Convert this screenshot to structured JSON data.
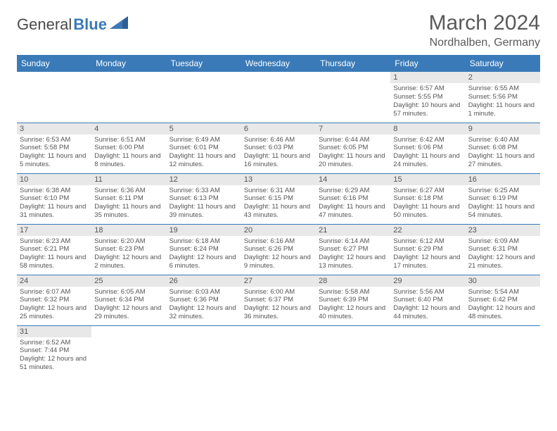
{
  "brand": {
    "part1": "General",
    "part2": "Blue"
  },
  "title": "March 2024",
  "location": "Nordhalben, Germany",
  "colors": {
    "header_bg": "#3a7ab8",
    "header_text": "#ffffff",
    "daynum_bg": "#e8e8e8",
    "text": "#555555",
    "border": "#3a7ab8"
  },
  "day_headers": [
    "Sunday",
    "Monday",
    "Tuesday",
    "Wednesday",
    "Thursday",
    "Friday",
    "Saturday"
  ],
  "weeks": [
    [
      null,
      null,
      null,
      null,
      null,
      {
        "n": "1",
        "sunrise": "6:57 AM",
        "sunset": "5:55 PM",
        "daylight": "10 hours and 57 minutes."
      },
      {
        "n": "2",
        "sunrise": "6:55 AM",
        "sunset": "5:56 PM",
        "daylight": "11 hours and 1 minute."
      }
    ],
    [
      {
        "n": "3",
        "sunrise": "6:53 AM",
        "sunset": "5:58 PM",
        "daylight": "11 hours and 5 minutes."
      },
      {
        "n": "4",
        "sunrise": "6:51 AM",
        "sunset": "6:00 PM",
        "daylight": "11 hours and 8 minutes."
      },
      {
        "n": "5",
        "sunrise": "6:49 AM",
        "sunset": "6:01 PM",
        "daylight": "11 hours and 12 minutes."
      },
      {
        "n": "6",
        "sunrise": "6:46 AM",
        "sunset": "6:03 PM",
        "daylight": "11 hours and 16 minutes."
      },
      {
        "n": "7",
        "sunrise": "6:44 AM",
        "sunset": "6:05 PM",
        "daylight": "11 hours and 20 minutes."
      },
      {
        "n": "8",
        "sunrise": "6:42 AM",
        "sunset": "6:06 PM",
        "daylight": "11 hours and 24 minutes."
      },
      {
        "n": "9",
        "sunrise": "6:40 AM",
        "sunset": "6:08 PM",
        "daylight": "11 hours and 27 minutes."
      }
    ],
    [
      {
        "n": "10",
        "sunrise": "6:38 AM",
        "sunset": "6:10 PM",
        "daylight": "11 hours and 31 minutes."
      },
      {
        "n": "11",
        "sunrise": "6:36 AM",
        "sunset": "6:11 PM",
        "daylight": "11 hours and 35 minutes."
      },
      {
        "n": "12",
        "sunrise": "6:33 AM",
        "sunset": "6:13 PM",
        "daylight": "11 hours and 39 minutes."
      },
      {
        "n": "13",
        "sunrise": "6:31 AM",
        "sunset": "6:15 PM",
        "daylight": "11 hours and 43 minutes."
      },
      {
        "n": "14",
        "sunrise": "6:29 AM",
        "sunset": "6:16 PM",
        "daylight": "11 hours and 47 minutes."
      },
      {
        "n": "15",
        "sunrise": "6:27 AM",
        "sunset": "6:18 PM",
        "daylight": "11 hours and 50 minutes."
      },
      {
        "n": "16",
        "sunrise": "6:25 AM",
        "sunset": "6:19 PM",
        "daylight": "11 hours and 54 minutes."
      }
    ],
    [
      {
        "n": "17",
        "sunrise": "6:23 AM",
        "sunset": "6:21 PM",
        "daylight": "11 hours and 58 minutes."
      },
      {
        "n": "18",
        "sunrise": "6:20 AM",
        "sunset": "6:23 PM",
        "daylight": "12 hours and 2 minutes."
      },
      {
        "n": "19",
        "sunrise": "6:18 AM",
        "sunset": "6:24 PM",
        "daylight": "12 hours and 6 minutes."
      },
      {
        "n": "20",
        "sunrise": "6:16 AM",
        "sunset": "6:26 PM",
        "daylight": "12 hours and 9 minutes."
      },
      {
        "n": "21",
        "sunrise": "6:14 AM",
        "sunset": "6:27 PM",
        "daylight": "12 hours and 13 minutes."
      },
      {
        "n": "22",
        "sunrise": "6:12 AM",
        "sunset": "6:29 PM",
        "daylight": "12 hours and 17 minutes."
      },
      {
        "n": "23",
        "sunrise": "6:09 AM",
        "sunset": "6:31 PM",
        "daylight": "12 hours and 21 minutes."
      }
    ],
    [
      {
        "n": "24",
        "sunrise": "6:07 AM",
        "sunset": "6:32 PM",
        "daylight": "12 hours and 25 minutes."
      },
      {
        "n": "25",
        "sunrise": "6:05 AM",
        "sunset": "6:34 PM",
        "daylight": "12 hours and 29 minutes."
      },
      {
        "n": "26",
        "sunrise": "6:03 AM",
        "sunset": "6:36 PM",
        "daylight": "12 hours and 32 minutes."
      },
      {
        "n": "27",
        "sunrise": "6:00 AM",
        "sunset": "6:37 PM",
        "daylight": "12 hours and 36 minutes."
      },
      {
        "n": "28",
        "sunrise": "5:58 AM",
        "sunset": "6:39 PM",
        "daylight": "12 hours and 40 minutes."
      },
      {
        "n": "29",
        "sunrise": "5:56 AM",
        "sunset": "6:40 PM",
        "daylight": "12 hours and 44 minutes."
      },
      {
        "n": "30",
        "sunrise": "5:54 AM",
        "sunset": "6:42 PM",
        "daylight": "12 hours and 48 minutes."
      }
    ],
    [
      {
        "n": "31",
        "sunrise": "6:52 AM",
        "sunset": "7:44 PM",
        "daylight": "12 hours and 51 minutes."
      },
      null,
      null,
      null,
      null,
      null,
      null
    ]
  ],
  "labels": {
    "sunrise": "Sunrise:",
    "sunset": "Sunset:",
    "daylight": "Daylight:"
  }
}
